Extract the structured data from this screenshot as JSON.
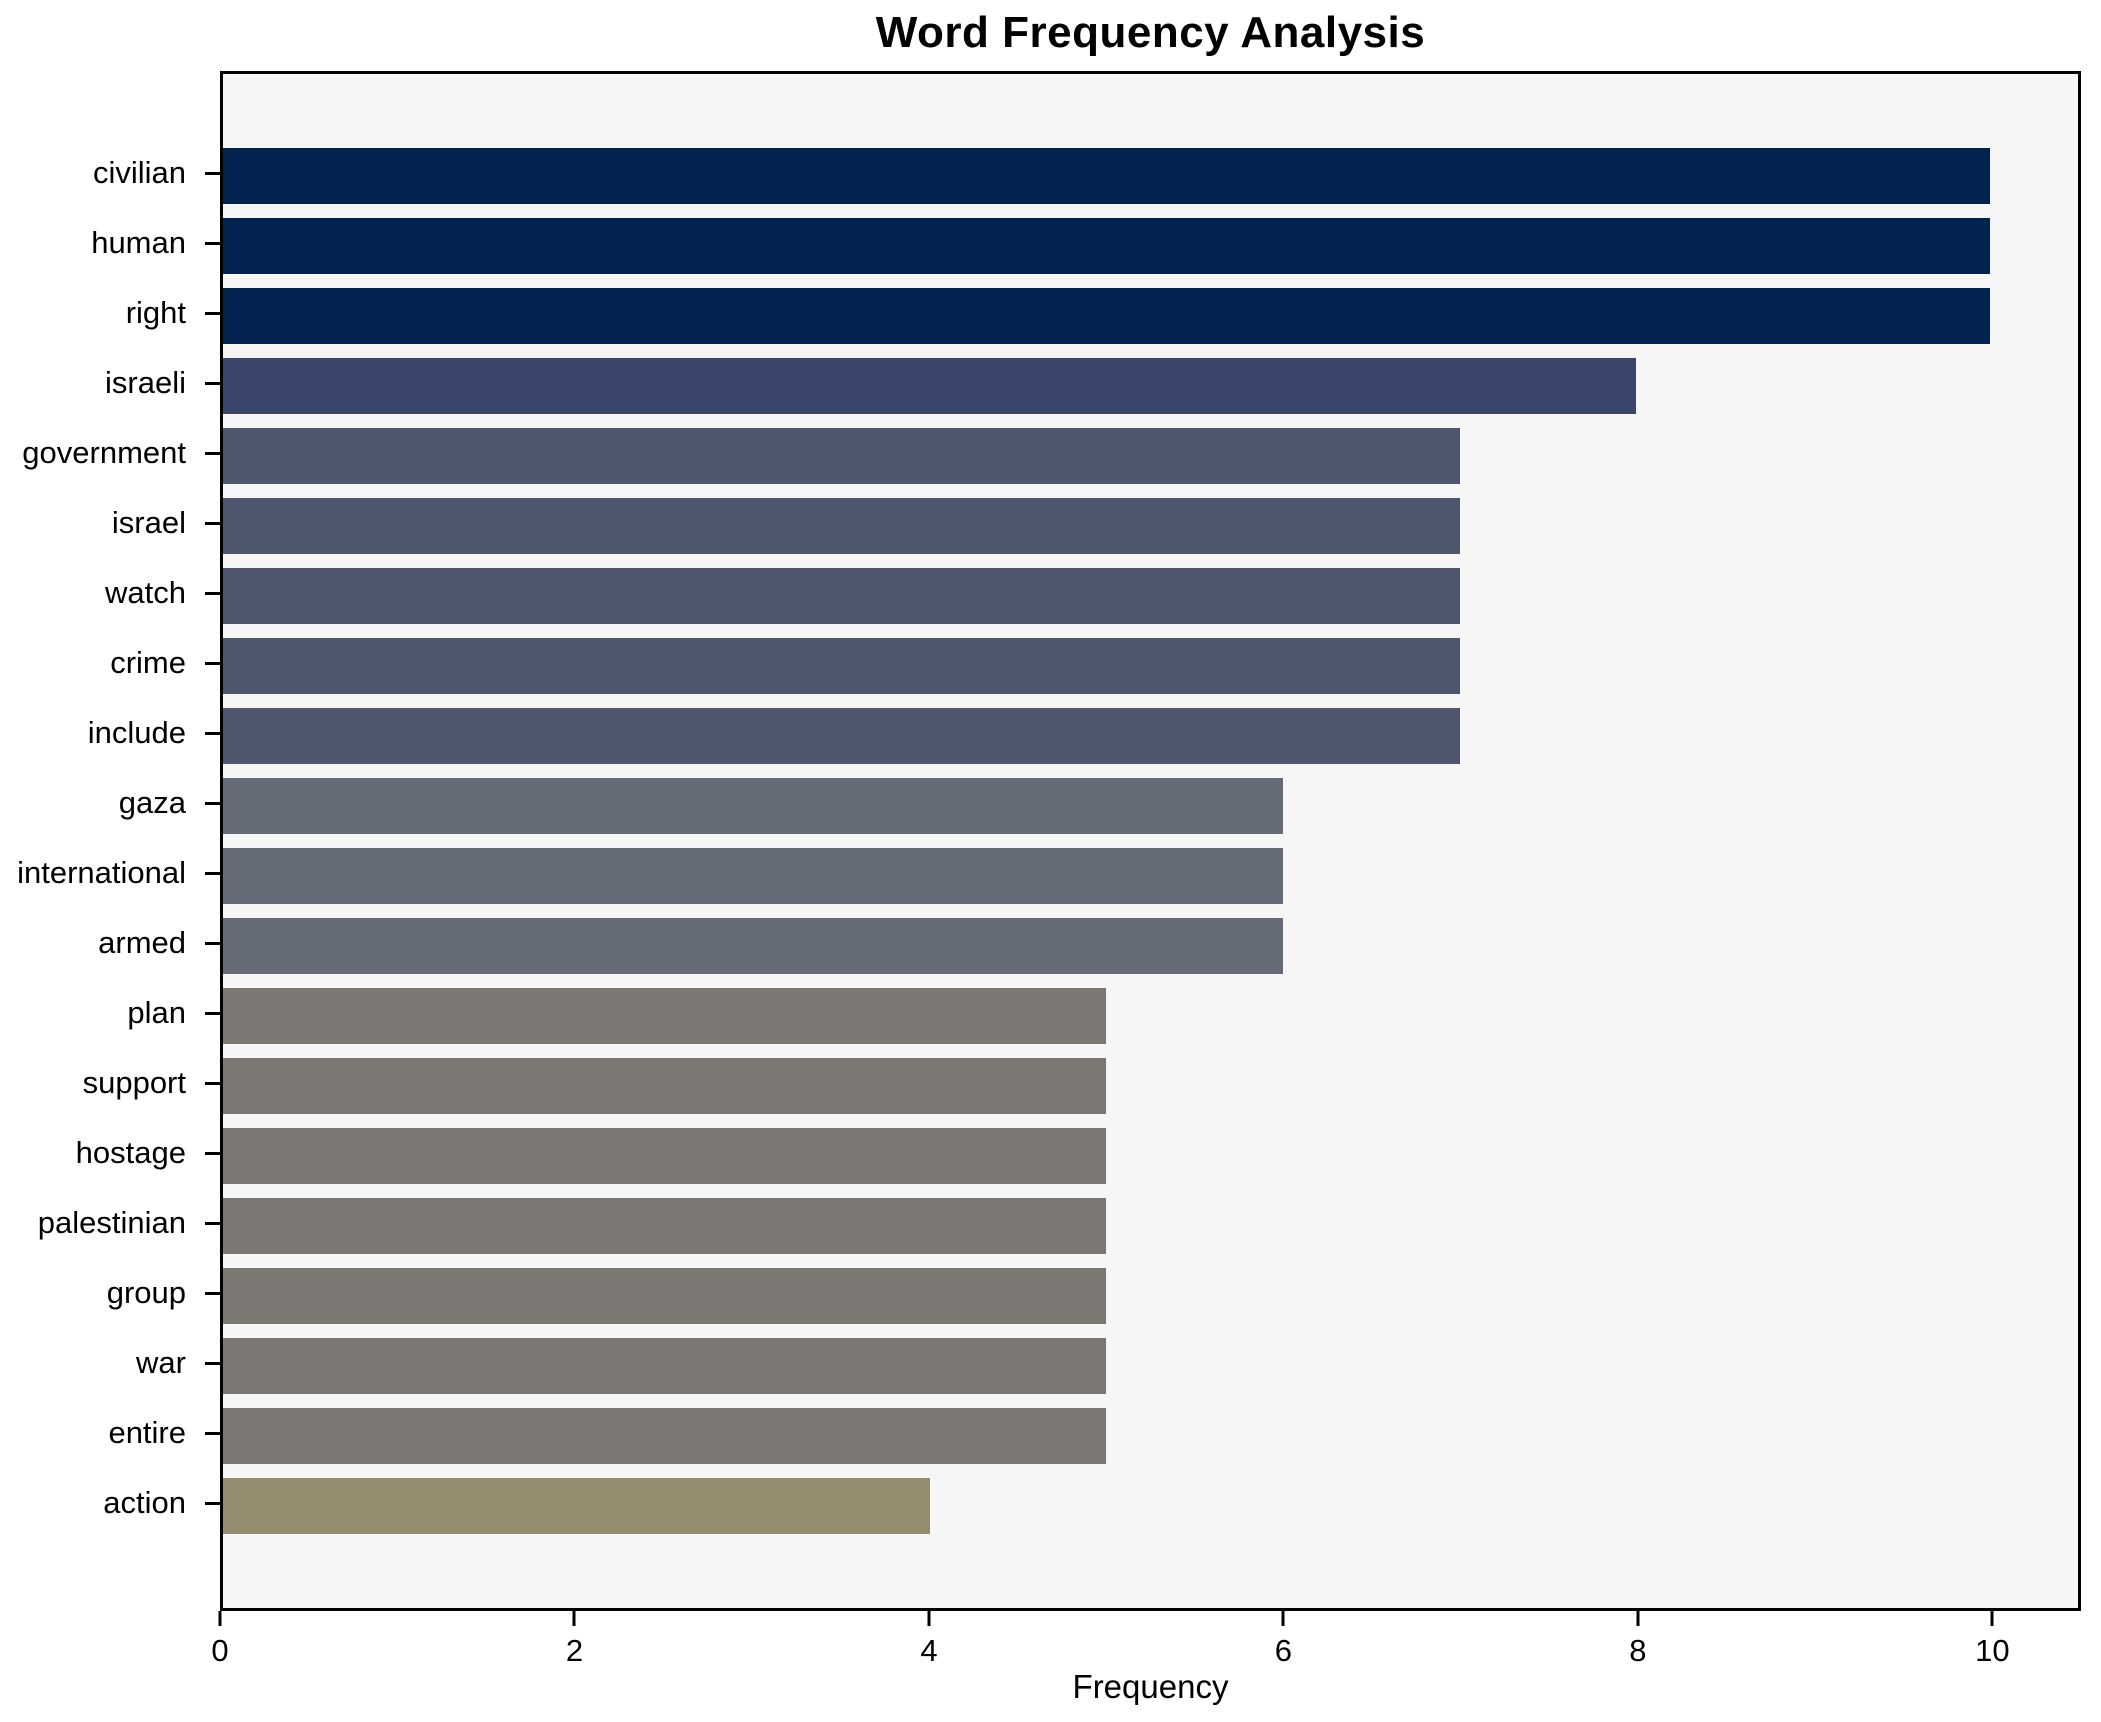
{
  "chart_data": {
    "type": "bar",
    "orientation": "horizontal",
    "title": "Word Frequency Analysis",
    "xlabel": "Frequency",
    "ylabel": "",
    "categories": [
      "civilian",
      "human",
      "right",
      "israeli",
      "government",
      "israel",
      "watch",
      "crime",
      "include",
      "gaza",
      "international",
      "armed",
      "plan",
      "support",
      "hostage",
      "palestinian",
      "group",
      "war",
      "entire",
      "action"
    ],
    "values": [
      10,
      10,
      10,
      8,
      7,
      7,
      7,
      7,
      7,
      6,
      6,
      6,
      5,
      5,
      5,
      5,
      5,
      5,
      5,
      4
    ],
    "bar_colors": [
      "#02234f",
      "#02234f",
      "#02234f",
      "#3a466b",
      "#4d566d",
      "#4d566d",
      "#4d566d",
      "#4d566d",
      "#4d566d",
      "#646a76",
      "#646a76",
      "#646a76",
      "#7b7873",
      "#7b7873",
      "#7b7873",
      "#7b7873",
      "#7b7873",
      "#7b7873",
      "#7b7873",
      "#948c6f"
    ],
    "xlim": [
      0,
      10.5
    ],
    "xticks": [
      0,
      2,
      4,
      6,
      8,
      10
    ],
    "grid": false,
    "legend": "none",
    "plot_background": "#f6f6f7",
    "figure_background": "#ffffff",
    "spine_color": "#000000"
  }
}
